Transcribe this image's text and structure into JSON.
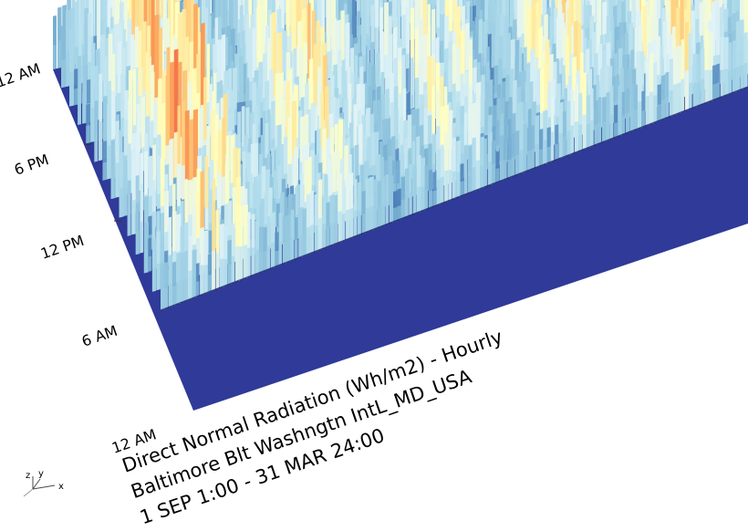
{
  "chart_data": {
    "type": "heatmap",
    "subtype": "3d-surface",
    "title": "Direct Normal Radiation (Wh/m2) - Hourly",
    "subtitle_location": "Baltimore Blt Washngtn IntL_MD_USA",
    "subtitle_period": "1 SEP 1:00 - 31 MAR 24:00",
    "value_label": "Direct Normal Radiation (Wh/m2)",
    "y_axis": {
      "label": "",
      "ticks": [
        "12 AM",
        "6 AM",
        "12 PM",
        "6 PM",
        "12 AM"
      ]
    },
    "x_axis": {
      "label": "",
      "range": [
        "1 SEP",
        "31 MAR"
      ]
    },
    "grid": false,
    "legend": "none",
    "colormap": [
      "#313695",
      "#4575b4",
      "#74add1",
      "#abd9e9",
      "#e0f3f8",
      "#ffffbf",
      "#fee090",
      "#fdae61",
      "#f46d43",
      "#d73027",
      "#a50026"
    ],
    "surface_base_color": "#2f3a99"
  },
  "axis_gizmo": {
    "x_label": "x",
    "y_label": "y",
    "z_label": "z"
  }
}
